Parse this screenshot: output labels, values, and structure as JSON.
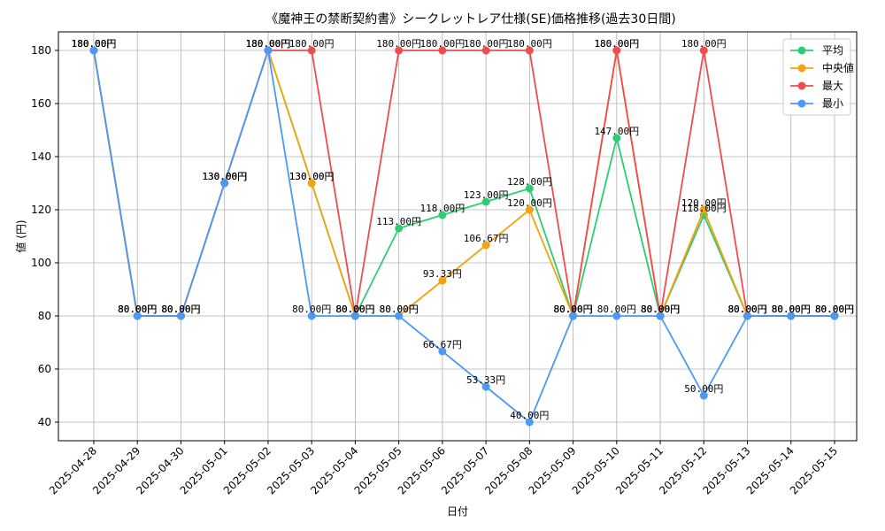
{
  "chart_data": {
    "type": "line",
    "title": "《魔神王の禁断契約書》シークレットレア仕様(SE)価格推移(過去30日間)",
    "xlabel": "日付",
    "ylabel": "値 (円)",
    "ylim": [
      33,
      187
    ],
    "yticks": [
      40,
      60,
      80,
      100,
      120,
      140,
      160,
      180
    ],
    "grid": true,
    "legend_position": "top-right",
    "label_suffix": "円",
    "categories": [
      "2025-04-28",
      "2025-04-29",
      "2025-04-30",
      "2025-05-01",
      "2025-05-02",
      "2025-05-03",
      "2025-05-04",
      "2025-05-05",
      "2025-05-06",
      "2025-05-07",
      "2025-05-08",
      "2025-05-09",
      "2025-05-10",
      "2025-05-11",
      "2025-05-12",
      "2025-05-13",
      "2025-05-14",
      "2025-05-15"
    ],
    "series": [
      {
        "name": "平均",
        "color": "#2ecc71",
        "values": [
          180,
          80,
          80,
          130,
          180,
          130,
          80,
          113,
          118,
          123,
          128,
          80,
          147,
          80,
          118,
          80,
          80,
          80
        ]
      },
      {
        "name": "中央値",
        "color": "#f5a20f",
        "values": [
          180,
          80,
          80,
          130,
          180,
          130,
          80,
          80,
          93.33,
          106.67,
          120,
          80,
          180,
          80,
          120,
          80,
          80,
          80
        ]
      },
      {
        "name": "最大",
        "color": "#ef4c4c",
        "values": [
          180,
          80,
          80,
          130,
          180,
          180,
          80,
          180,
          180,
          180,
          180,
          80,
          180,
          80,
          180,
          80,
          80,
          80
        ]
      },
      {
        "name": "最小",
        "color": "#4a9af5",
        "values": [
          180,
          80,
          80,
          130,
          180,
          80,
          80,
          80,
          66.67,
          53.33,
          40,
          80,
          80,
          80,
          50,
          80,
          80,
          80
        ]
      }
    ]
  }
}
